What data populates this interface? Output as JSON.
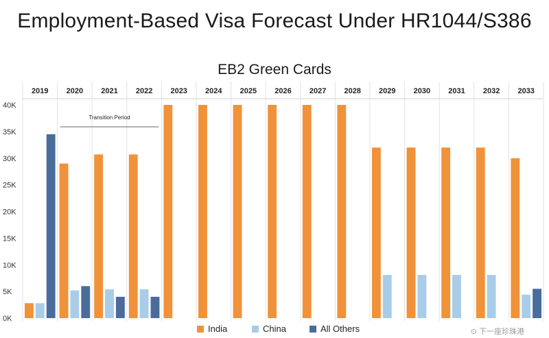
{
  "page": {
    "title": "Employment-Based Visa Forecast Under HR1044/S386"
  },
  "watermark": "⊙ 下一座珍珠港",
  "chart_data": {
    "type": "bar",
    "title": "EB2 Green Cards",
    "categories": [
      "2019",
      "2020",
      "2021",
      "2022",
      "2023",
      "2024",
      "2025",
      "2026",
      "2027",
      "2028",
      "2029",
      "2030",
      "2031",
      "2032",
      "2033"
    ],
    "series": [
      {
        "name": "India",
        "color": "#F0923A",
        "values": [
          2800,
          29000,
          30700,
          30700,
          40000,
          40000,
          40000,
          40000,
          40000,
          40000,
          32000,
          32000,
          32000,
          32000,
          30000
        ]
      },
      {
        "name": "China",
        "color": "#A9CDE8",
        "values": [
          2800,
          5200,
          5400,
          5400,
          0,
          0,
          0,
          0,
          0,
          0,
          8100,
          8100,
          8100,
          8100,
          4400
        ]
      },
      {
        "name": "All Others",
        "color": "#4A6C9B",
        "values": [
          34500,
          6000,
          4000,
          4000,
          0,
          0,
          0,
          0,
          0,
          0,
          0,
          0,
          0,
          0,
          5500
        ]
      }
    ],
    "yticks": [
      0,
      5000,
      10000,
      15000,
      20000,
      25000,
      30000,
      35000,
      40000
    ],
    "ytick_labels": [
      "0K",
      "5K",
      "10K",
      "15K",
      "20K",
      "25K",
      "30K",
      "35K",
      "40K"
    ],
    "ylim": [
      0,
      40000
    ],
    "annotation": {
      "text": "Transition Period",
      "from": "2020",
      "to": "2022"
    },
    "legend_position": "bottom"
  }
}
